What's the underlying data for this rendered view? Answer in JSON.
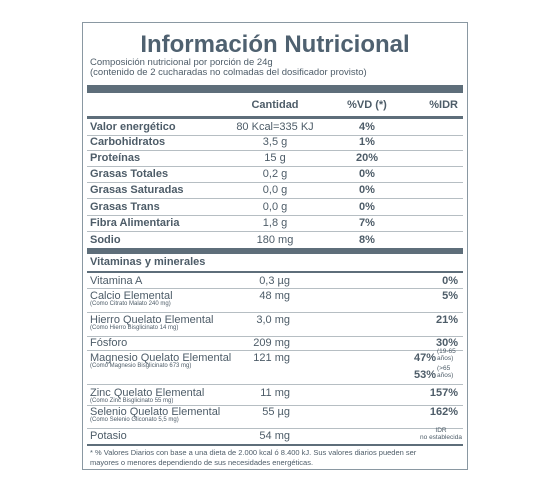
{
  "header": {
    "title": "Información Nutricional",
    "lines": [
      "Composición nutricional por porción de 24g",
      "(contenido de 2 cucharadas no colmadas del dosificador provisto)"
    ]
  },
  "table": {
    "columns": [
      "Cantidad",
      "%VD (*)",
      "%IDR"
    ],
    "rows": [
      {
        "label": "Valor energético",
        "amount": "80 Kcal=335 KJ",
        "vd": "4%"
      },
      {
        "label": "Carbohidratos",
        "amount": "3,5 g",
        "vd": "1%"
      },
      {
        "label": "Proteínas",
        "amount": "15 g",
        "vd": "20%"
      },
      {
        "label": "Grasas Totales",
        "amount": "0,2 g",
        "vd": "0%"
      },
      {
        "label": "Grasas Saturadas",
        "amount": "0,0 g",
        "vd": "0%"
      },
      {
        "label": "Grasas Trans",
        "amount": "0,0 g",
        "vd": "0%"
      },
      {
        "label": "Fibra Alimentaria",
        "amount": "1,8 g",
        "vd": "7%"
      },
      {
        "label": "Sodio",
        "amount": "180 mg",
        "vd": "8%"
      }
    ],
    "section": "Vitaminas y minerales",
    "minerals": [
      {
        "label": "Vitamina A",
        "amount": "0,3 µg",
        "idr": [
          {
            "value": "0%"
          }
        ]
      },
      {
        "label": "Calcio Elemental",
        "note": "(Como Citrato Malato 240 mg)",
        "amount": "48 mg",
        "idr": [
          {
            "value": "5%"
          }
        ]
      },
      {
        "label": "Hierro Quelato Elemental",
        "note": "(Como Hierro Bisglicinato 14 mg)",
        "amount": "3,0 mg",
        "idr": [
          {
            "value": "21%"
          }
        ]
      },
      {
        "label": "Fósforo",
        "amount": "209 mg",
        "idr": [
          {
            "value": "30%"
          }
        ]
      },
      {
        "label": "Magnesio Quelato Elemental",
        "note": "(Como Magnesio Bisglicinato 673 mg)",
        "amount": "121 mg",
        "idr": [
          {
            "value": "47%",
            "note": [
              "(19-65",
              "años)"
            ]
          },
          {
            "value": "53%",
            "note": [
              "(>65",
              "años)"
            ]
          }
        ]
      },
      {
        "label": "Zinc Quelato Elemental",
        "note": "(Como Zinc Bisglicinato 55 mg)",
        "amount": "11 mg",
        "idr": [
          {
            "value": "157%"
          }
        ]
      },
      {
        "label": "Selenio Quelato Elemental",
        "note": "(Como Selenio Gliconato 5,5 mg)",
        "amount": "55 µg",
        "idr": [
          {
            "value": "162%"
          }
        ]
      },
      {
        "label": "Potasio",
        "amount": "54 mg",
        "idr_text": [
          "IDR",
          "no establecida"
        ]
      }
    ]
  },
  "footnote": [
    "* % Valores Diarios con base a una dieta de 2.000 kcal ó 8.400 kJ. Sus valores diarios pueden ser",
    "mayores o menores dependiendo de sus necesidades energéticas."
  ]
}
